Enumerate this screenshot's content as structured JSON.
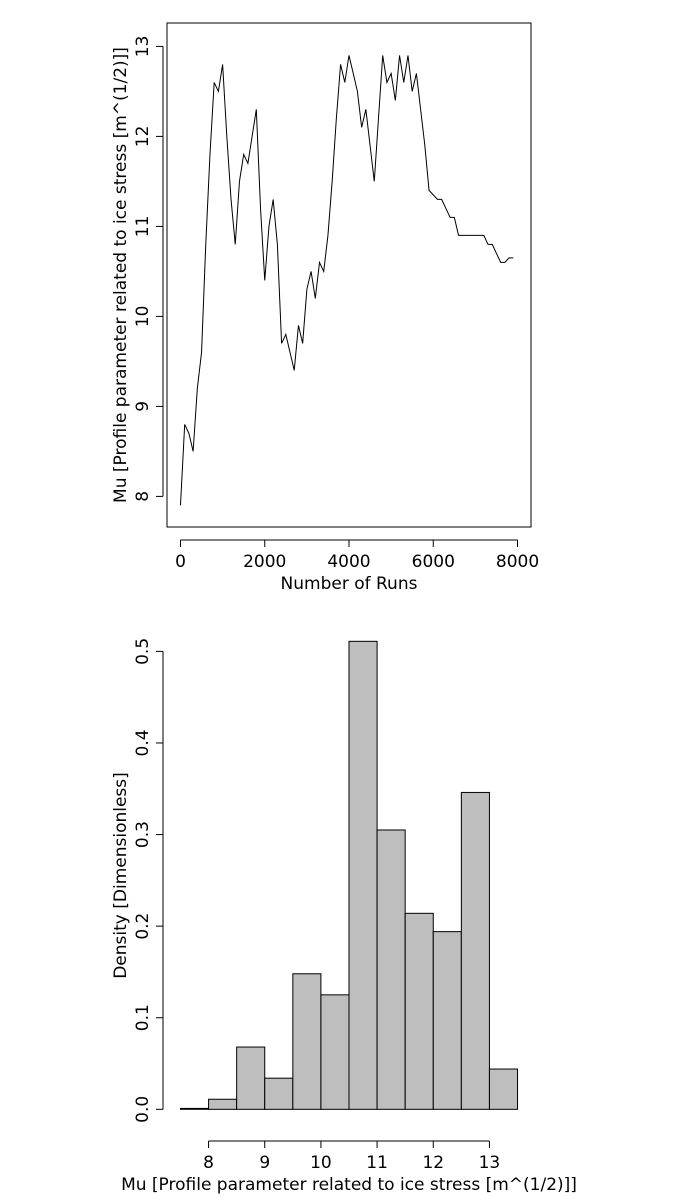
{
  "chart_data": [
    {
      "type": "line",
      "xlabel": "Number of Runs",
      "ylabel": "Mu [Profile parameter related to ice stress [m^(1/2)]]",
      "x": [
        0,
        100,
        200,
        300,
        400,
        500,
        600,
        700,
        800,
        900,
        1000,
        1100,
        1200,
        1300,
        1400,
        1500,
        1600,
        1700,
        1800,
        1900,
        2000,
        2100,
        2200,
        2300,
        2400,
        2500,
        2600,
        2700,
        2800,
        2900,
        3000,
        3100,
        3200,
        3300,
        3400,
        3500,
        3600,
        3700,
        3800,
        3900,
        4000,
        4100,
        4200,
        4300,
        4400,
        4500,
        4600,
        4700,
        4800,
        4900,
        5000,
        5100,
        5200,
        5300,
        5400,
        5500,
        5600,
        5700,
        5800,
        5900,
        6000,
        6100,
        6200,
        6300,
        6400,
        6500,
        6600,
        6700,
        6800,
        6900,
        7000,
        7100,
        7200,
        7300,
        7400,
        7500,
        7600,
        7700,
        7800,
        7900
      ],
      "series": [
        {
          "color": "#000000",
          "values": [
            7.9,
            8.8,
            8.7,
            8.5,
            9.2,
            9.6,
            10.8,
            11.8,
            12.6,
            12.5,
            12.8,
            12.0,
            11.3,
            10.8,
            11.5,
            11.8,
            11.7,
            12.0,
            12.3,
            11.2,
            10.4,
            11.0,
            11.3,
            10.8,
            9.7,
            9.8,
            9.6,
            9.4,
            9.9,
            9.7,
            10.3,
            10.5,
            10.2,
            10.6,
            10.5,
            10.9,
            11.5,
            12.2,
            12.8,
            12.6,
            12.9,
            12.7,
            12.5,
            12.1,
            12.3,
            11.9,
            11.5,
            12.2,
            12.9,
            12.6,
            12.7,
            12.4,
            12.9,
            12.6,
            12.9,
            12.5,
            12.7,
            12.3,
            11.9,
            11.4,
            11.35,
            11.3,
            11.3,
            11.2,
            11.1,
            11.1,
            10.9,
            10.9,
            10.9,
            10.9,
            10.9,
            10.9,
            10.9,
            10.8,
            10.8,
            10.7,
            10.6,
            10.6,
            10.65,
            10.65
          ]
        }
      ],
      "xlim": [
        -320,
        8320
      ],
      "ylim": [
        7.66,
        13.26
      ],
      "xticks": [
        0,
        2000,
        4000,
        6000,
        8000
      ],
      "yticks": [
        8,
        9,
        10,
        11,
        12,
        13
      ],
      "box": true
    },
    {
      "type": "histogram",
      "xlabel": "Mu [Profile parameter related to ice stress [m^(1/2)]]",
      "ylabel": "Density [Dimensionless]",
      "bins": [
        7.5,
        8,
        8.5,
        9,
        9.5,
        10,
        10.5,
        11,
        11.5,
        12,
        12.5,
        13,
        13.5
      ],
      "values": [
        0.001,
        0.011,
        0.068,
        0.034,
        0.148,
        0.125,
        0.511,
        0.305,
        0.214,
        0.194,
        0.346,
        0.044
      ],
      "color": "#bebebe",
      "xlim": [
        7.26,
        13.74
      ],
      "ylim": [
        -0.0204,
        0.531
      ],
      "xticks": [
        8,
        9,
        10,
        11,
        12,
        13
      ],
      "yticks": [
        {
          "value": 0,
          "label": "0.0"
        },
        0.1,
        0.2,
        0.3,
        0.4,
        0.5
      ],
      "box": false
    }
  ]
}
